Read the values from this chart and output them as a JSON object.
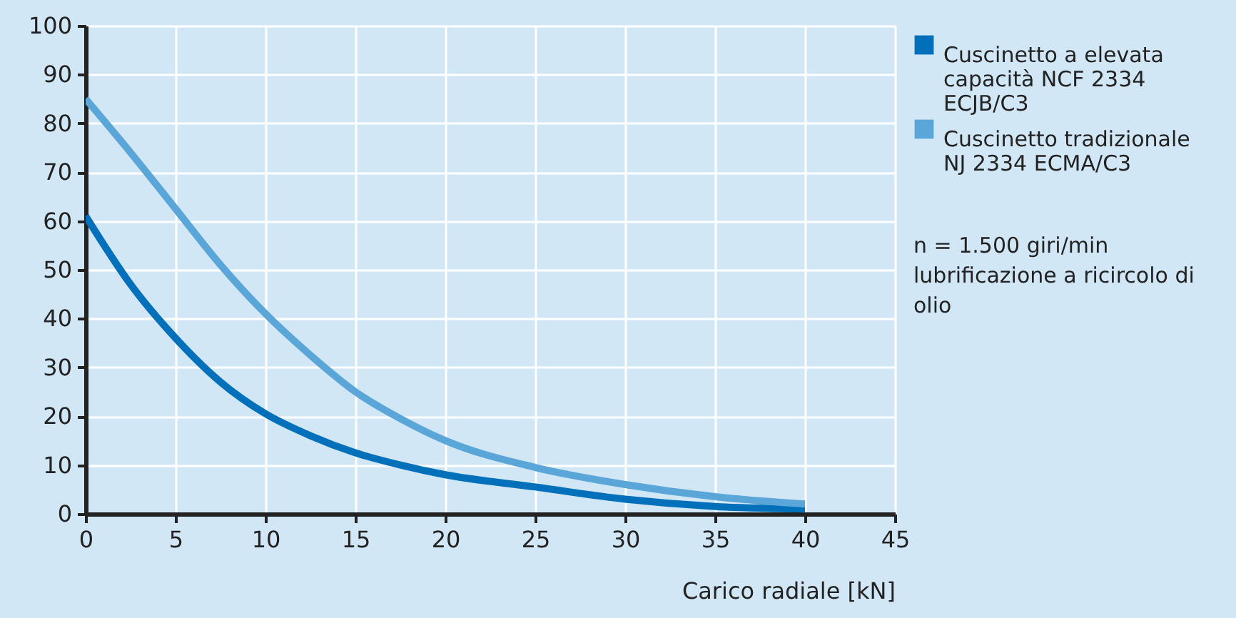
{
  "chart_data": {
    "type": "line",
    "xlabel": "Carico radiale [kN]",
    "x": [
      0,
      2.5,
      5,
      7.5,
      10,
      12.5,
      15,
      17.5,
      20,
      25,
      30,
      35,
      40
    ],
    "series": [
      {
        "name": "Cuscinetto a elevata\ncapacità NCF 2334\nECJB/C3",
        "color": "#0070bb",
        "values": [
          61,
          47,
          36,
          27,
          20.5,
          16,
          12.5,
          10,
          8,
          5.5,
          3,
          1.5,
          1
        ]
      },
      {
        "name": "Cuscinetto tradizionale\nNJ 2334 ECMA/C3",
        "color": "#5ba6d8",
        "values": [
          85,
          74,
          62.5,
          51,
          41,
          32.5,
          25,
          19.5,
          15,
          9.5,
          6,
          3.5,
          2
        ]
      }
    ],
    "xlim": [
      0,
      45
    ],
    "xticks": [
      0,
      5,
      10,
      15,
      20,
      25,
      30,
      35,
      40,
      45
    ],
    "ylim": [
      0,
      100
    ],
    "yticks": [
      0,
      10,
      20,
      30,
      40,
      50,
      60,
      70,
      80,
      90,
      100
    ],
    "grid": true,
    "legend": "right",
    "marker": "none",
    "line_style": "solid",
    "annotations": [
      "n = 1.500 giri/min\nlubrificazione a ricircolo di olio"
    ]
  }
}
